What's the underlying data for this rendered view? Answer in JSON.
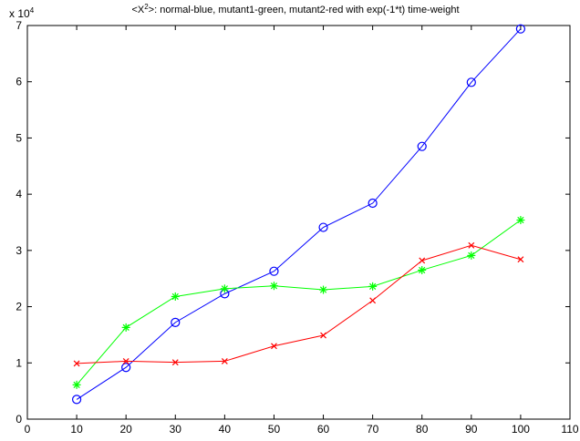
{
  "chart_data": {
    "type": "line",
    "title_prefix": "<X",
    "title_superscript": "2",
    "title_suffix": ">: normal-blue, mutant1-green, mutant2-red with exp(-1*t) time-weight",
    "y_multiplier_base": "x 10",
    "y_multiplier_exponent": "4",
    "x": [
      10,
      20,
      30,
      40,
      50,
      60,
      70,
      80,
      90,
      100
    ],
    "xlim": [
      0,
      110
    ],
    "ylim": [
      0,
      7
    ],
    "x_ticks": [
      "0",
      "10",
      "20",
      "30",
      "40",
      "50",
      "60",
      "70",
      "80",
      "90",
      "100",
      "110"
    ],
    "y_ticks": [
      "0",
      "1",
      "2",
      "3",
      "4",
      "5",
      "6",
      "7"
    ],
    "grid": false,
    "series": [
      {
        "color": "#0000ff",
        "marker": "circle",
        "values": [
          0.35,
          0.92,
          1.72,
          2.23,
          2.63,
          3.41,
          3.84,
          4.85,
          5.99,
          6.94
        ]
      },
      {
        "color": "#00ff00",
        "marker": "asterisk",
        "values": [
          0.61,
          1.63,
          2.18,
          2.32,
          2.37,
          2.3,
          2.36,
          2.65,
          2.91,
          3.54
        ]
      },
      {
        "color": "#ff0000",
        "marker": "x",
        "values": [
          0.99,
          1.03,
          1.01,
          1.03,
          1.3,
          1.49,
          2.11,
          2.82,
          3.09,
          2.84
        ]
      }
    ]
  }
}
